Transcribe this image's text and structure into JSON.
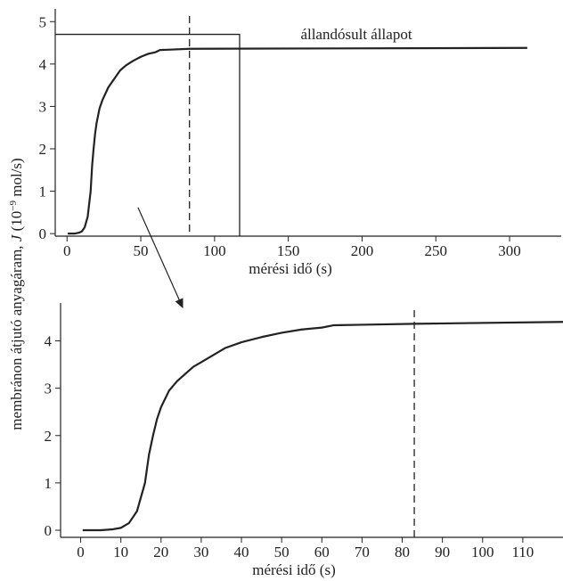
{
  "y_label_parts": [
    "membránon átjutó anyagáram, ",
    "J",
    " (10",
    "−9",
    " mol/s)"
  ],
  "chart_data": [
    {
      "type": "line",
      "xlabel": "mérési idő (s)",
      "xlim": [
        -8,
        335
      ],
      "ylim": [
        -0.06,
        5.3
      ],
      "xticks": [
        0,
        50,
        100,
        150,
        200,
        250,
        300
      ],
      "yticks": [
        0,
        1,
        2,
        3,
        4,
        5
      ],
      "color": "#222222",
      "series": [
        {
          "color": "#222222",
          "x": [
            0.5,
            5,
            8,
            10,
            12,
            14,
            16,
            17,
            18,
            19,
            20,
            22,
            24,
            26,
            28,
            30,
            33,
            36,
            40,
            45,
            50,
            55,
            60,
            63,
            70,
            83,
            312
          ],
          "values": [
            0,
            0,
            0.02,
            0.05,
            0.15,
            0.4,
            1.0,
            1.6,
            2.0,
            2.35,
            2.6,
            2.95,
            3.15,
            3.3,
            3.45,
            3.55,
            3.7,
            3.85,
            3.97,
            4.08,
            4.17,
            4.24,
            4.28,
            4.33,
            4.34,
            4.36,
            4.38
          ]
        }
      ],
      "vlines": [
        83
      ],
      "box": {
        "x": 117,
        "y": 4.7
      },
      "annotation": "állandósult állapot"
    },
    {
      "type": "line",
      "xlabel": "mérési idő (s)",
      "xlim": [
        -5,
        120
      ],
      "ylim": [
        -0.15,
        4.8
      ],
      "xticks": [
        0,
        10,
        20,
        30,
        40,
        50,
        60,
        70,
        80,
        90,
        100,
        110
      ],
      "yticks": [
        0,
        1,
        2,
        3,
        4
      ],
      "color": "#222222",
      "series": [
        {
          "color": "#222222",
          "x": [
            0.5,
            5,
            8,
            10,
            12,
            14,
            16,
            17,
            18,
            19,
            20,
            22,
            24,
            26,
            28,
            30,
            33,
            36,
            40,
            45,
            50,
            55,
            60,
            63,
            70,
            83,
            120
          ],
          "values": [
            0,
            0,
            0.02,
            0.05,
            0.15,
            0.4,
            1.0,
            1.6,
            2.0,
            2.35,
            2.6,
            2.95,
            3.15,
            3.3,
            3.45,
            3.55,
            3.7,
            3.85,
            3.97,
            4.08,
            4.17,
            4.24,
            4.28,
            4.33,
            4.34,
            4.36,
            4.4
          ]
        }
      ],
      "vlines": [
        83
      ]
    }
  ]
}
